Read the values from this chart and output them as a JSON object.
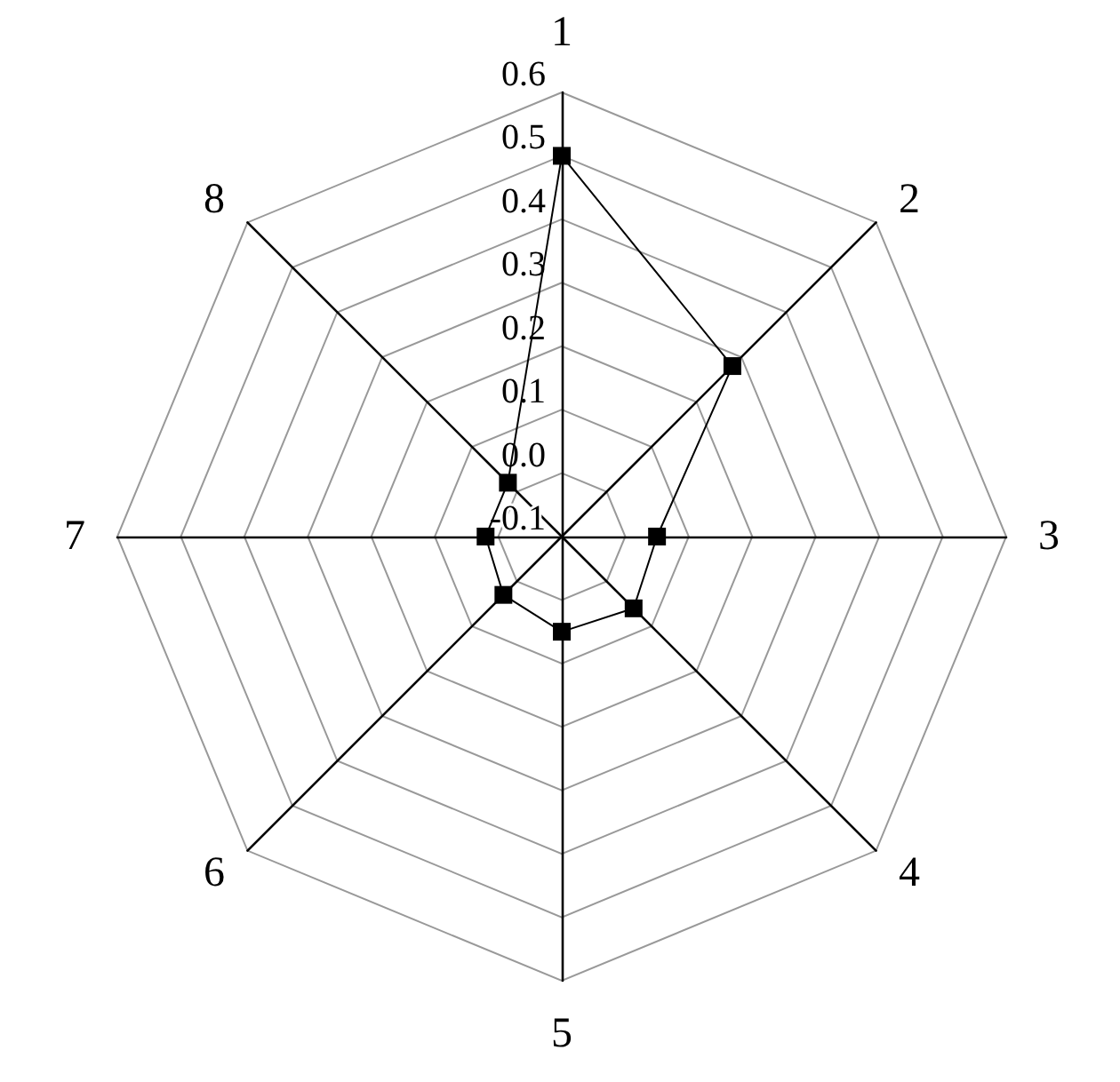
{
  "chart_data": {
    "type": "radar",
    "categories": [
      "1",
      "2",
      "3",
      "4",
      "5",
      "6",
      "7",
      "8"
    ],
    "series": [
      {
        "color": "#000000",
        "values": [
          0.5,
          0.28,
          0.05,
          0.06,
          0.05,
          0.03,
          0.02,
          0.02
        ]
      }
    ],
    "ylim": [
      -0.1,
      0.6
    ],
    "yticks": [
      {
        "value": -0.1,
        "label": "-0.1"
      },
      {
        "value": 0,
        "label": "0.0"
      },
      0.1,
      0.2,
      0.3,
      0.4,
      0.5,
      0.6
    ],
    "marker": "square",
    "line_style": "solid",
    "grid": true
  }
}
